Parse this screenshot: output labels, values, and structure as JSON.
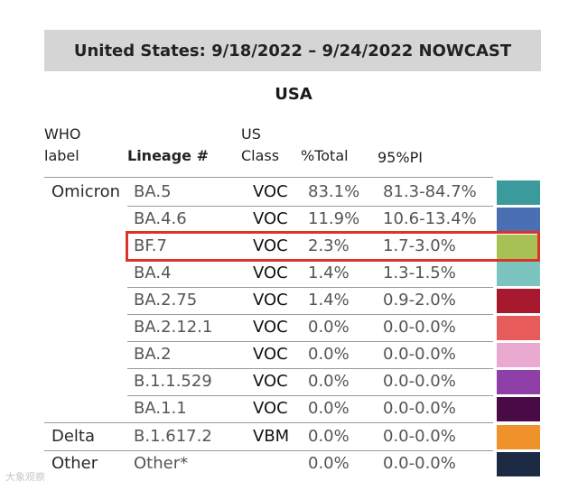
{
  "banner": {
    "title": "United States: 9/18/2022 – 9/24/2022 NOWCAST"
  },
  "region": "USA",
  "headers": {
    "who_line1": "WHO",
    "who_line2": "label",
    "lineage": "Lineage #",
    "us_line1": "US",
    "us_line2": "Class",
    "pct_total": "%Total",
    "pi": "95%PI"
  },
  "rows": [
    {
      "who": "Omicron",
      "lineage": "BA.5",
      "class": "VOC",
      "total": "83.1%",
      "pi": "81.3-84.7%",
      "color": "#3a9a9c"
    },
    {
      "who": "",
      "lineage": "BA.4.6",
      "class": "VOC",
      "total": "11.9%",
      "pi": "10.6-13.4%",
      "color": "#4a6fb2"
    },
    {
      "who": "",
      "lineage": "BF.7",
      "class": "VOC",
      "total": "2.3%",
      "pi": "1.7-3.0%",
      "color": "#a8c154"
    },
    {
      "who": "",
      "lineage": "BA.4",
      "class": "VOC",
      "total": "1.4%",
      "pi": "1.3-1.5%",
      "color": "#7cc4c0"
    },
    {
      "who": "",
      "lineage": "BA.2.75",
      "class": "VOC",
      "total": "1.4%",
      "pi": "0.9-2.0%",
      "color": "#a6192e"
    },
    {
      "who": "",
      "lineage": "BA.2.12.1",
      "class": "VOC",
      "total": "0.0%",
      "pi": "0.0-0.0%",
      "color": "#e85b5b"
    },
    {
      "who": "",
      "lineage": "BA.2",
      "class": "VOC",
      "total": "0.0%",
      "pi": "0.0-0.0%",
      "color": "#e9a9d1"
    },
    {
      "who": "",
      "lineage": "B.1.1.529",
      "class": "VOC",
      "total": "0.0%",
      "pi": "0.0-0.0%",
      "color": "#8e3fa8"
    },
    {
      "who": "",
      "lineage": "BA.1.1",
      "class": "VOC",
      "total": "0.0%",
      "pi": "0.0-0.0%",
      "color": "#4a0a45"
    },
    {
      "who": "Delta",
      "lineage": "B.1.617.2",
      "class": "VBM",
      "total": "0.0%",
      "pi": "0.0-0.0%",
      "color": "#f0922b"
    },
    {
      "who": "Other",
      "lineage": "Other*",
      "class": "",
      "total": "0.0%",
      "pi": "0.0-0.0%",
      "color": "#1c2a44"
    }
  ],
  "highlighted_lineage": "BF.7",
  "watermark": "大象观察"
}
